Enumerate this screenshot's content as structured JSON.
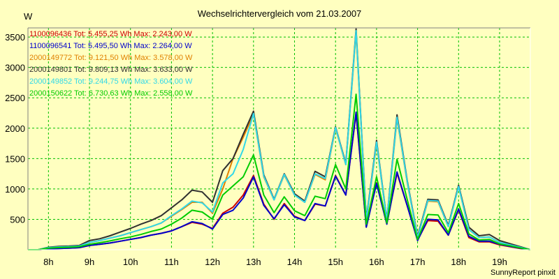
{
  "chart_data": {
    "type": "line",
    "title": "Wechselrichtervergleich vom 21.03.2007",
    "ylabel": "W",
    "xlabel": "",
    "footer": "SunnyReport pinxit",
    "x_start_hour": 7.5,
    "x_end_hour": 19.75,
    "ylim": [
      0,
      3650
    ],
    "xticks": [
      {
        "label": "8h",
        "hour": 8
      },
      {
        "label": "9h",
        "hour": 9
      },
      {
        "label": "10h",
        "hour": 10
      },
      {
        "label": "11h",
        "hour": 11
      },
      {
        "label": "12h",
        "hour": 12
      },
      {
        "label": "13h",
        "hour": 13
      },
      {
        "label": "14h",
        "hour": 14
      },
      {
        "label": "15h",
        "hour": 15
      },
      {
        "label": "16h",
        "hour": 16
      },
      {
        "label": "17h",
        "hour": 17
      },
      {
        "label": "18h",
        "hour": 18
      },
      {
        "label": "19h",
        "hour": 19
      }
    ],
    "yticks": [
      500,
      1000,
      1500,
      2000,
      2500,
      3000,
      3500
    ],
    "grid": true,
    "legend_position": "top-left",
    "x": [
      7.5,
      7.75,
      8.0,
      8.25,
      8.5,
      8.75,
      9.0,
      9.25,
      9.5,
      9.75,
      10.0,
      10.25,
      10.5,
      10.75,
      11.0,
      11.25,
      11.5,
      11.75,
      12.0,
      12.25,
      12.5,
      12.75,
      13.0,
      13.25,
      13.5,
      13.75,
      14.0,
      14.25,
      14.5,
      14.75,
      15.0,
      15.25,
      15.5,
      15.75,
      16.0,
      16.25,
      16.5,
      16.75,
      17.0,
      17.25,
      17.5,
      17.75,
      18.0,
      18.25,
      18.5,
      18.75,
      19.0,
      19.25,
      19.5,
      19.75
    ],
    "series": [
      {
        "name": "1100096436 Tot: 5.455,25 Wh Max: 2.243,00 W",
        "color": "#cc0000",
        "values": [
          0,
          0,
          15,
          20,
          25,
          35,
          70,
          90,
          110,
          140,
          170,
          200,
          240,
          270,
          310,
          380,
          450,
          420,
          350,
          600,
          700,
          900,
          1220,
          750,
          500,
          760,
          550,
          480,
          750,
          720,
          1220,
          900,
          2243,
          380,
          1100,
          430,
          1260,
          720,
          160,
          480,
          470,
          240,
          660,
          200,
          130,
          130,
          80,
          50,
          20,
          0
        ]
      },
      {
        "name": "1100096541 Tot: 5.495,50 Wh Max: 2.264,00 W",
        "color": "#0000cc",
        "values": [
          0,
          0,
          15,
          20,
          25,
          35,
          70,
          90,
          110,
          140,
          170,
          200,
          240,
          270,
          310,
          380,
          460,
          430,
          340,
          580,
          650,
          850,
          1200,
          730,
          510,
          740,
          540,
          480,
          760,
          720,
          1210,
          900,
          2264,
          370,
          1090,
          420,
          1280,
          720,
          150,
          500,
          490,
          240,
          670,
          220,
          140,
          140,
          90,
          55,
          25,
          0
        ]
      },
      {
        "name": "2000149772 Tot: 9.121,50 Wh Max: 3.578,00 W",
        "color": "#e08000",
        "values": [
          0,
          0,
          35,
          45,
          50,
          60,
          120,
          150,
          190,
          230,
          280,
          330,
          380,
          440,
          550,
          660,
          780,
          780,
          600,
          1000,
          1500,
          1850,
          2230,
          1200,
          820,
          1230,
          900,
          780,
          1240,
          1150,
          2000,
          1400,
          3578,
          470,
          1750,
          480,
          2160,
          1100,
          200,
          800,
          790,
          380,
          1040,
          330,
          200,
          210,
          120,
          80,
          40,
          0
        ]
      },
      {
        "name": "2000149801 Tot: 9.809,13 Wh Max: 3.633,00 W",
        "color": "#303030",
        "values": [
          0,
          0,
          40,
          55,
          60,
          70,
          150,
          180,
          230,
          290,
          350,
          420,
          480,
          560,
          690,
          820,
          980,
          950,
          780,
          1300,
          1500,
          1900,
          2280,
          1230,
          830,
          1250,
          920,
          800,
          1290,
          1200,
          2020,
          1420,
          3633,
          500,
          1800,
          490,
          2220,
          1130,
          220,
          830,
          820,
          400,
          1060,
          370,
          230,
          250,
          150,
          100,
          50,
          0
        ]
      },
      {
        "name": "2000149852 Tot: 9.244,75 Wh Max: 3.604,00 W",
        "color": "#30d8e8",
        "values": [
          0,
          0,
          35,
          45,
          50,
          60,
          120,
          150,
          190,
          230,
          280,
          330,
          380,
          440,
          560,
          670,
          800,
          770,
          620,
          1100,
          1250,
          1650,
          2240,
          1210,
          820,
          1240,
          900,
          780,
          1250,
          1170,
          2010,
          1400,
          3604,
          480,
          1770,
          480,
          2180,
          1110,
          200,
          810,
          800,
          380,
          1040,
          330,
          200,
          210,
          120,
          80,
          40,
          0
        ]
      },
      {
        "name": "2000150622 Tot: 6.730,63 Wh Max: 2.558,00 W",
        "color": "#00cc00",
        "values": [
          0,
          0,
          25,
          35,
          40,
          50,
          90,
          115,
          145,
          180,
          210,
          250,
          300,
          340,
          420,
          520,
          650,
          620,
          500,
          900,
          1050,
          1200,
          1560,
          900,
          610,
          870,
          640,
          560,
          880,
          840,
          1400,
          1000,
          2558,
          420,
          1200,
          440,
          1490,
          820,
          170,
          580,
          570,
          280,
          760,
          260,
          160,
          170,
          95,
          65,
          30,
          0
        ]
      }
    ]
  }
}
